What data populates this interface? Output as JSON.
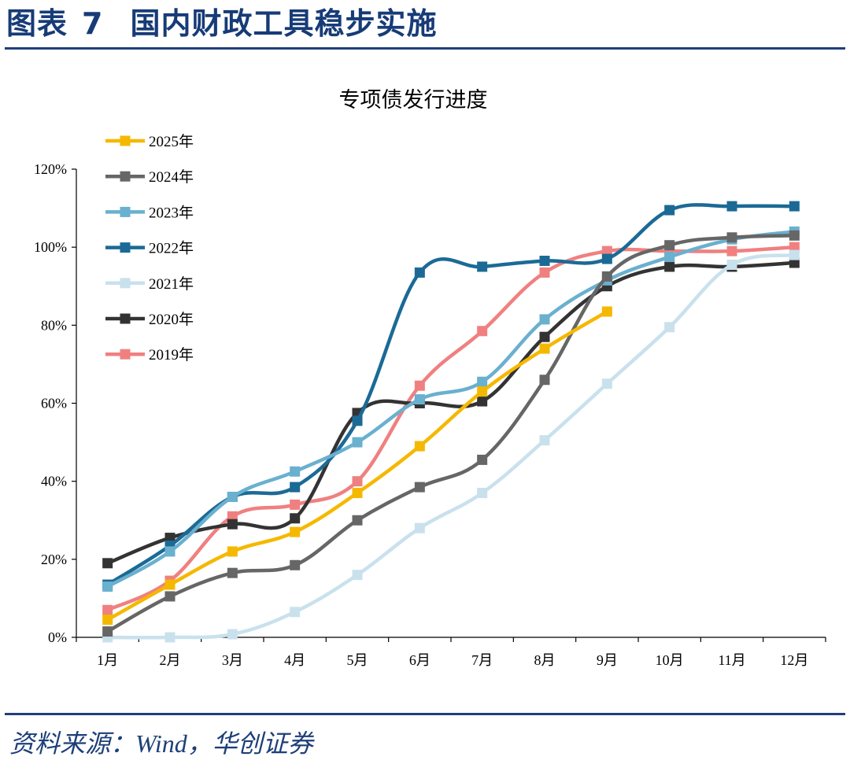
{
  "header": {
    "fig_label": "图表",
    "fig_number": "7",
    "title": "国内财政工具稳步实施"
  },
  "footer": {
    "source_label": "资料来源：",
    "source_wind": "Wind",
    "source_rest": "，华创证券"
  },
  "chart_data": {
    "type": "line",
    "title": "专项债发行进度",
    "xlabel": "",
    "ylabel": "",
    "categories": [
      "1月",
      "2月",
      "3月",
      "4月",
      "5月",
      "6月",
      "7月",
      "8月",
      "9月",
      "10月",
      "11月",
      "12月"
    ],
    "ylim": [
      0,
      120
    ],
    "yticks": [
      0,
      20,
      40,
      60,
      80,
      100,
      120
    ],
    "ytick_labels": [
      "0%",
      "20%",
      "40%",
      "60%",
      "80%",
      "100%",
      "120%"
    ],
    "grid": false,
    "legend_position": "top-left",
    "series": [
      {
        "name": "2025年",
        "color": "#f5b800",
        "values": [
          4.5,
          13.5,
          22,
          27,
          37,
          49,
          63,
          74,
          83.5,
          null,
          null,
          null
        ]
      },
      {
        "name": "2024年",
        "color": "#666666",
        "values": [
          1.5,
          10.5,
          16.5,
          18.5,
          30,
          38.5,
          45.5,
          66,
          92.5,
          100.5,
          102.5,
          103
        ]
      },
      {
        "name": "2023年",
        "color": "#6ab0cf",
        "values": [
          13,
          22,
          36,
          42.5,
          50,
          61,
          65.5,
          81.5,
          91.5,
          97.5,
          102,
          104
        ]
      },
      {
        "name": "2022年",
        "color": "#1b6a96",
        "values": [
          13.5,
          23.5,
          36,
          38.5,
          55.5,
          93.5,
          95,
          96.5,
          97,
          109.5,
          110.5,
          110.5
        ]
      },
      {
        "name": "2021年",
        "color": "#c9e1ed",
        "values": [
          0,
          0,
          0.8,
          6.5,
          16,
          28,
          37,
          50.5,
          65,
          79.5,
          95.5,
          98
        ]
      },
      {
        "name": "2020年",
        "color": "#333333",
        "values": [
          19,
          25.5,
          29,
          30.5,
          57.5,
          60,
          60.5,
          77,
          90,
          95,
          95,
          96
        ]
      },
      {
        "name": "2019年",
        "color": "#f08080",
        "values": [
          7,
          14.5,
          31,
          34,
          40,
          64.5,
          78.5,
          93.5,
          99,
          99,
          99,
          100
        ]
      }
    ]
  }
}
